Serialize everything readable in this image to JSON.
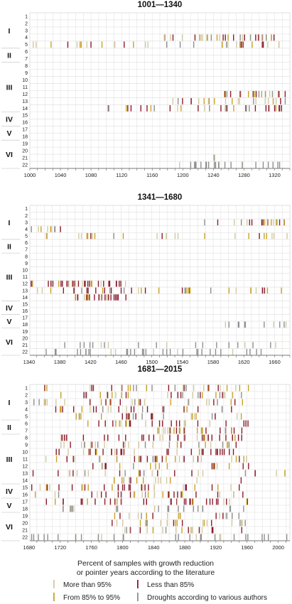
{
  "chart_data": {
    "type": "event-strip",
    "colors": {
      "more_than_95": "#d2c9a0",
      "from_85_to_95": "#c9a227",
      "less_than_85": "#8a1c2c",
      "droughts": "#8f8f8f"
    },
    "row_labels": [
      "1",
      "2",
      "3",
      "4",
      "5",
      "6",
      "7",
      "8",
      "9",
      "10",
      "11",
      "12",
      "13",
      "14",
      "15",
      "16",
      "17",
      "18",
      "19",
      "20",
      "21",
      "22"
    ],
    "groups": [
      {
        "label": "I",
        "rows": [
          1,
          5
        ]
      },
      {
        "label": "II",
        "rows": [
          6,
          7
        ]
      },
      {
        "label": "III",
        "rows": [
          8,
          14
        ]
      },
      {
        "label": "IV",
        "rows": [
          15,
          16
        ]
      },
      {
        "label": "V",
        "rows": [
          17,
          18
        ]
      },
      {
        "label": "VI",
        "rows": [
          19,
          22
        ]
      }
    ],
    "panels": [
      {
        "title": "1001—1340",
        "xlim": [
          1000,
          1340
        ],
        "ticks": [
          "1000",
          "1040",
          "1080",
          "1120",
          "1160",
          "1200",
          "1240",
          "1280",
          "1320"
        ],
        "tick_values": [
          1000,
          1040,
          1080,
          1120,
          1160,
          1200,
          1240,
          1280,
          1320
        ],
        "events": [
          {
            "row": 4,
            "start": 1170,
            "end": 1335,
            "count": 32,
            "mix": "mixed",
            "seed": 11
          },
          {
            "row": 5,
            "start": 1004,
            "end": 1338,
            "count": 34,
            "mix": "pale",
            "seed": 12
          },
          {
            "row": 12,
            "start": 1250,
            "end": 1336,
            "count": 20,
            "mix": "mixed",
            "seed": 13
          },
          {
            "row": 13,
            "start": 1175,
            "end": 1336,
            "count": 22,
            "mix": "pale",
            "seed": 14
          },
          {
            "row": 14,
            "start": 1100,
            "end": 1335,
            "count": 32,
            "mix": "mixed",
            "seed": 15
          },
          {
            "row": 21,
            "start": 1240,
            "end": 1250,
            "count": 2,
            "mix": "grey",
            "seed": 16
          },
          {
            "row": 22,
            "start": 1190,
            "end": 1336,
            "count": 24,
            "mix": "grey",
            "seed": 17
          }
        ]
      },
      {
        "title": "1341—1680",
        "xlim": [
          1341,
          1680
        ],
        "ticks": [
          "1340",
          "1380",
          "1420",
          "1460",
          "1500",
          "1540",
          "1580",
          "1620",
          "1660"
        ],
        "tick_values": [
          1340,
          1380,
          1420,
          1460,
          1500,
          1540,
          1580,
          1620,
          1660
        ],
        "events": [
          {
            "row": 3,
            "start": 1568,
            "end": 1678,
            "count": 20,
            "mix": "mixed",
            "seed": 21
          },
          {
            "row": 4,
            "start": 1342,
            "end": 1382,
            "count": 9,
            "mix": "mixed",
            "seed": 22
          },
          {
            "row": 5,
            "start": 1342,
            "end": 1678,
            "count": 26,
            "mix": "pale",
            "seed": 23
          },
          {
            "row": 12,
            "start": 1342,
            "end": 1478,
            "count": 34,
            "mix": "red",
            "seed": 24
          },
          {
            "row": 13,
            "start": 1342,
            "end": 1678,
            "count": 40,
            "mix": "mixed",
            "seed": 25
          },
          {
            "row": 14,
            "start": 1398,
            "end": 1468,
            "count": 26,
            "mix": "red",
            "seed": 26
          },
          {
            "row": 18,
            "start": 1592,
            "end": 1678,
            "count": 12,
            "mix": "grey",
            "seed": 27
          },
          {
            "row": 21,
            "start": 1360,
            "end": 1678,
            "count": 20,
            "mix": "grey",
            "seed": 28
          },
          {
            "row": 22,
            "start": 1342,
            "end": 1678,
            "count": 36,
            "mix": "grey",
            "seed": 29
          }
        ]
      },
      {
        "title": "1681—2015",
        "xlim": [
          1681,
          2015
        ],
        "ticks": [
          "1680",
          "1720",
          "1760",
          "1800",
          "1840",
          "1880",
          "1920",
          "1960",
          "2000"
        ],
        "tick_values": [
          1680,
          1720,
          1760,
          1800,
          1840,
          1880,
          1920,
          1960,
          2000
        ],
        "events": [
          {
            "row": 1,
            "start": 1700,
            "end": 1962,
            "count": 30,
            "mix": "mixed",
            "seed": 31
          },
          {
            "row": 2,
            "start": 1720,
            "end": 1962,
            "count": 28,
            "mix": "mixed",
            "seed": 32
          },
          {
            "row": 3,
            "start": 1683,
            "end": 1962,
            "count": 30,
            "mix": "mixed",
            "seed": 33
          },
          {
            "row": 4,
            "start": 1700,
            "end": 1962,
            "count": 26,
            "mix": "mixed",
            "seed": 34
          },
          {
            "row": 5,
            "start": 1740,
            "end": 1962,
            "count": 26,
            "mix": "mixed",
            "seed": 35
          },
          {
            "row": 6,
            "start": 1740,
            "end": 1962,
            "count": 28,
            "mix": "mixed",
            "seed": 36
          },
          {
            "row": 7,
            "start": 1840,
            "end": 1962,
            "count": 26,
            "mix": "mixed",
            "seed": 37
          },
          {
            "row": 8,
            "start": 1720,
            "end": 1962,
            "count": 34,
            "mix": "red",
            "seed": 38
          },
          {
            "row": 9,
            "start": 1720,
            "end": 1962,
            "count": 28,
            "mix": "mixed",
            "seed": 39
          },
          {
            "row": 10,
            "start": 1700,
            "end": 1962,
            "count": 34,
            "mix": "red",
            "seed": 40
          },
          {
            "row": 11,
            "start": 1683,
            "end": 1962,
            "count": 34,
            "mix": "mixed",
            "seed": 41
          },
          {
            "row": 12,
            "start": 1760,
            "end": 1962,
            "count": 20,
            "mix": "mixed",
            "seed": 42
          },
          {
            "row": 13,
            "start": 1683,
            "end": 2012,
            "count": 26,
            "mix": "mixed",
            "seed": 43
          },
          {
            "row": 14,
            "start": 1760,
            "end": 1962,
            "count": 18,
            "mix": "mixed",
            "seed": 44
          },
          {
            "row": 15,
            "start": 1683,
            "end": 1962,
            "count": 34,
            "mix": "red",
            "seed": 45
          },
          {
            "row": 16,
            "start": 1683,
            "end": 1962,
            "count": 30,
            "mix": "mixed",
            "seed": 46
          },
          {
            "row": 17,
            "start": 1700,
            "end": 1962,
            "count": 36,
            "mix": "red",
            "seed": 47
          },
          {
            "row": 18,
            "start": 1720,
            "end": 1962,
            "count": 22,
            "mix": "grey",
            "seed": 48
          },
          {
            "row": 19,
            "start": 1780,
            "end": 1962,
            "count": 18,
            "mix": "mixed",
            "seed": 49
          },
          {
            "row": 20,
            "start": 1780,
            "end": 1962,
            "count": 22,
            "mix": "mixed",
            "seed": 50
          },
          {
            "row": 21,
            "start": 1800,
            "end": 1962,
            "count": 20,
            "mix": "mixed",
            "seed": 51
          },
          {
            "row": 22,
            "start": 1683,
            "end": 2012,
            "count": 30,
            "mix": "grey",
            "seed": 52
          }
        ]
      }
    ],
    "legend": {
      "title_line1": "Percent of samples with growth reduction",
      "title_line2": "or pointer years according to the literature",
      "items": [
        {
          "label": "More than 95%",
          "color": "more_than_95"
        },
        {
          "label": "Less than 85%",
          "color": "less_than_85"
        },
        {
          "label": "From 85% to 95%",
          "color": "from_85_to_95"
        },
        {
          "label": "Droughts according to various authors",
          "color": "droughts"
        }
      ]
    }
  }
}
